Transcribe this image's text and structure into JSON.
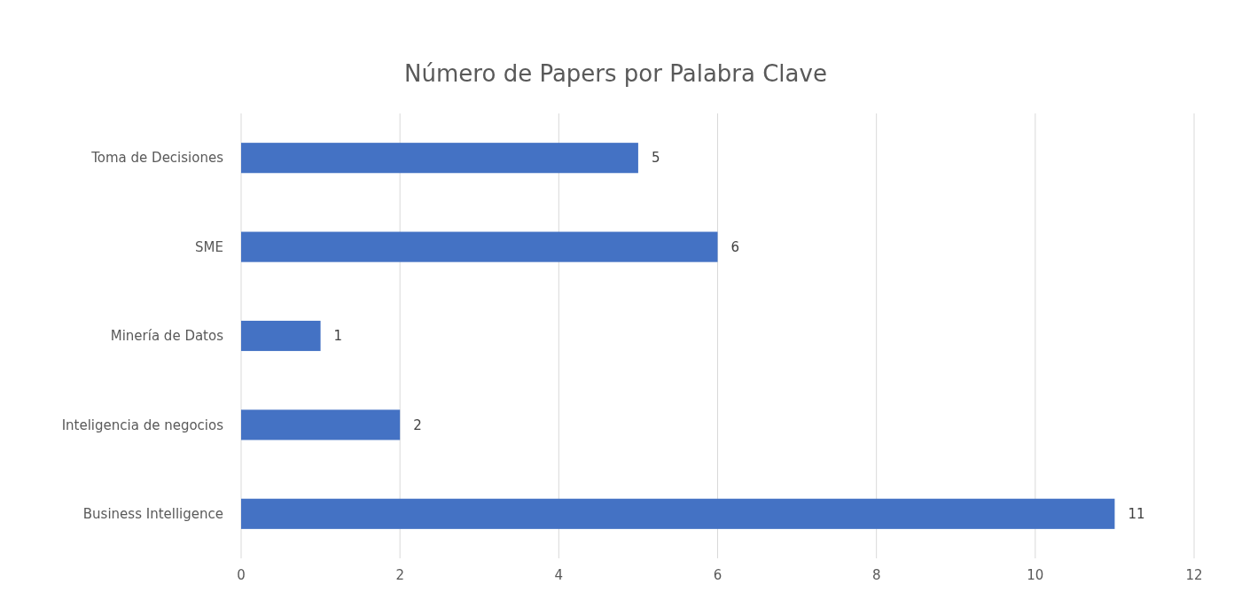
{
  "chart_data": {
    "type": "bar",
    "orientation": "horizontal",
    "title": "Número de Papers por Palabra Clave",
    "categories": [
      "Toma de Decisiones",
      "SME",
      "Minería de Datos",
      "Inteligencia de negocios",
      "Business Intelligence"
    ],
    "values": [
      5,
      6,
      1,
      2,
      11
    ],
    "color": "#4472c4",
    "xlim": [
      0,
      12
    ],
    "xticks": [
      0,
      2,
      4,
      6,
      8,
      10,
      12
    ],
    "grid": "x",
    "data_labels": true
  }
}
